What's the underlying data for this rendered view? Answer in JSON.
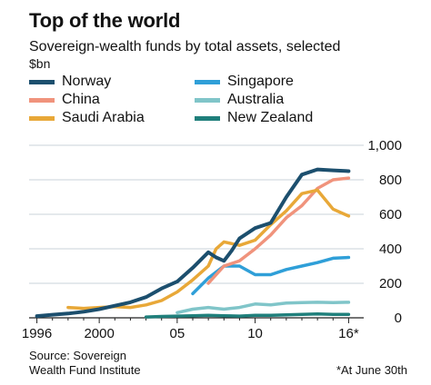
{
  "header": {
    "title": "Top of the world",
    "subtitle": "Sovereign-wealth funds by total assets, selected",
    "unit": "$bn"
  },
  "footer": {
    "source_line1": "Source: Sovereign",
    "source_line2": "Wealth Fund Institute",
    "note": "*At June 30th"
  },
  "chart_data": {
    "type": "line",
    "title": "Top of the world",
    "subtitle": "Sovereign-wealth funds by total assets, selected",
    "ylabel": "$bn",
    "xlim": [
      1995.5,
      2016.5
    ],
    "ylim": [
      0,
      1000
    ],
    "y_ticks": [
      0,
      200,
      400,
      600,
      800,
      1000
    ],
    "y_tick_labels": [
      "0",
      "200",
      "400",
      "600",
      "800",
      "1,000"
    ],
    "x_ticks": [
      1996,
      2000,
      2005,
      2010,
      2016
    ],
    "x_tick_labels": [
      "1996",
      "2000",
      "05",
      "10",
      "16*"
    ],
    "grid": "horizontal",
    "legend": "top",
    "series": [
      {
        "name": "Norway",
        "color": "#1c4f6e",
        "x": [
          1996,
          1997,
          1998,
          1999,
          2000,
          2001,
          2002,
          2003,
          2004,
          2005,
          2006,
          2007,
          2007.5,
          2008,
          2008.5,
          2009,
          2010,
          2011,
          2012,
          2013,
          2014,
          2015,
          2016
        ],
        "y": [
          10,
          18,
          25,
          35,
          50,
          70,
          90,
          120,
          170,
          210,
          290,
          380,
          350,
          330,
          390,
          460,
          520,
          550,
          700,
          830,
          860,
          855,
          850
        ]
      },
      {
        "name": "China",
        "color": "#f0937c",
        "x": [
          2007,
          2007.5,
          2008,
          2009,
          2010,
          2011,
          2012,
          2013,
          2014,
          2015,
          2016
        ],
        "y": [
          200,
          250,
          300,
          330,
          400,
          480,
          580,
          650,
          750,
          800,
          810
        ]
      },
      {
        "name": "Saudi Arabia",
        "color": "#e8a838",
        "x": [
          1998,
          1999,
          2000,
          2001,
          2002,
          2003,
          2004,
          2005,
          2006,
          2007,
          2007.5,
          2008,
          2009,
          2010,
          2011,
          2012,
          2013,
          2014,
          2015,
          2016
        ],
        "y": [
          60,
          55,
          60,
          65,
          60,
          75,
          100,
          150,
          220,
          300,
          400,
          440,
          420,
          450,
          540,
          620,
          720,
          740,
          630,
          590
        ]
      },
      {
        "name": "Singapore",
        "color": "#2f9fd8",
        "x": [
          2006,
          2007,
          2008,
          2009,
          2010,
          2011,
          2012,
          2013,
          2014,
          2015,
          2016
        ],
        "y": [
          140,
          230,
          300,
          300,
          250,
          250,
          280,
          300,
          320,
          345,
          350
        ]
      },
      {
        "name": "Australia",
        "color": "#80c5c9",
        "x": [
          2005,
          2006,
          2007,
          2007.5,
          2008,
          2009,
          2010,
          2011,
          2012,
          2013,
          2014,
          2015,
          2016
        ],
        "y": [
          30,
          50,
          60,
          55,
          50,
          60,
          80,
          75,
          85,
          88,
          90,
          88,
          90
        ]
      },
      {
        "name": "New Zealand",
        "color": "#1f7f7b",
        "x": [
          2003,
          2004,
          2005,
          2006,
          2007,
          2008,
          2009,
          2010,
          2011,
          2012,
          2013,
          2014,
          2015,
          2016
        ],
        "y": [
          5,
          8,
          10,
          12,
          14,
          12,
          10,
          14,
          15,
          17,
          20,
          22,
          20,
          20
        ]
      }
    ]
  }
}
